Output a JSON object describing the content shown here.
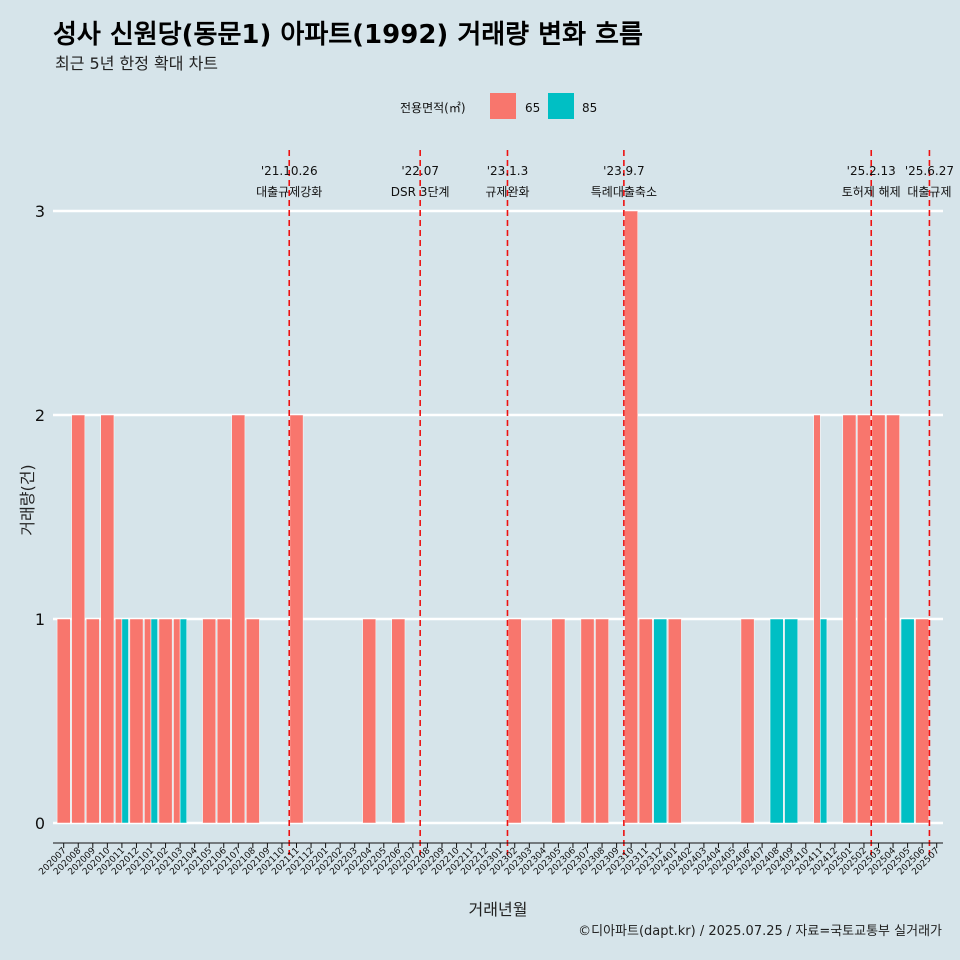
{
  "title": "성사 신원당(동문1) 아파트(1992) 거래량 변화 흐름",
  "subtitle": "최근 5년 한정 확대 차트",
  "caption": "©디아파트(dapt.kr) / 2025.07.25 / 자료=국토교통부 실거래가",
  "legend": {
    "title": "전용면적(㎡)",
    "items": [
      {
        "label": "65",
        "color": "#F8766D"
      },
      {
        "label": "85",
        "color": "#00BFC4"
      }
    ]
  },
  "chart_data": {
    "type": "bar",
    "title": "성사 신원당(동문1) 아파트(1992) 거래량 변화 흐름",
    "subtitle": "최근 5년 한정 확대 차트",
    "xlabel": "거래년월",
    "ylabel": "거래량(건)",
    "ylim": [
      0,
      3
    ],
    "yticks": [
      0,
      1,
      2,
      3
    ],
    "grid": "horizontal",
    "legend_position": "top",
    "categories": [
      "202007",
      "202008",
      "202009",
      "202010",
      "202011",
      "202012",
      "202101",
      "202102",
      "202103",
      "202104",
      "202105",
      "202106",
      "202107",
      "202108",
      "202109",
      "202110",
      "202111",
      "202112",
      "202201",
      "202202",
      "202203",
      "202204",
      "202205",
      "202206",
      "202207",
      "202208",
      "202209",
      "202210",
      "202211",
      "202212",
      "202301",
      "202302",
      "202303",
      "202304",
      "202305",
      "202306",
      "202307",
      "202308",
      "202309",
      "202310",
      "202311",
      "202312",
      "202401",
      "202402",
      "202403",
      "202404",
      "202405",
      "202406",
      "202407",
      "202408",
      "202409",
      "202410",
      "202411",
      "202412",
      "202501",
      "202502",
      "202503",
      "202504",
      "202505",
      "202506",
      "202507"
    ],
    "series": [
      {
        "name": "65",
        "color": "#F8766D",
        "values": [
          1,
          2,
          1,
          2,
          1,
          1,
          1,
          1,
          1,
          0,
          1,
          1,
          2,
          1,
          0,
          0,
          2,
          0,
          0,
          0,
          0,
          1,
          0,
          1,
          0,
          0,
          0,
          0,
          0,
          0,
          0,
          1,
          0,
          0,
          1,
          0,
          1,
          1,
          0,
          3,
          1,
          0,
          1,
          0,
          0,
          0,
          0,
          1,
          0,
          0,
          0,
          0,
          2,
          0,
          2,
          2,
          2,
          2,
          0,
          1,
          0
        ]
      },
      {
        "name": "85",
        "color": "#00BFC4",
        "values": [
          0,
          0,
          0,
          0,
          1,
          0,
          1,
          0,
          1,
          0,
          0,
          0,
          0,
          0,
          0,
          0,
          0,
          0,
          0,
          0,
          0,
          0,
          0,
          0,
          0,
          0,
          0,
          0,
          0,
          0,
          0,
          0,
          0,
          0,
          0,
          0,
          0,
          0,
          0,
          0,
          0,
          1,
          0,
          0,
          0,
          0,
          0,
          0,
          0,
          1,
          1,
          0,
          1,
          0,
          0,
          0,
          0,
          0,
          1,
          0,
          0
        ]
      }
    ],
    "annotations": [
      {
        "date": "'21.10.26",
        "label": "대출규제강화",
        "month": "202110"
      },
      {
        "date": "'22.07",
        "label": "DSR 3단계",
        "month": "202207"
      },
      {
        "date": "'23.1.3",
        "label": "규제완화",
        "month": "202301"
      },
      {
        "date": "'23.9.7",
        "label": "특례대출축소",
        "month": "202309"
      },
      {
        "date": "'25.2.13",
        "label": "토허제 해제",
        "month": "202502"
      },
      {
        "date": "'25.6.27",
        "label": "대출규제",
        "month": "202506"
      }
    ]
  }
}
